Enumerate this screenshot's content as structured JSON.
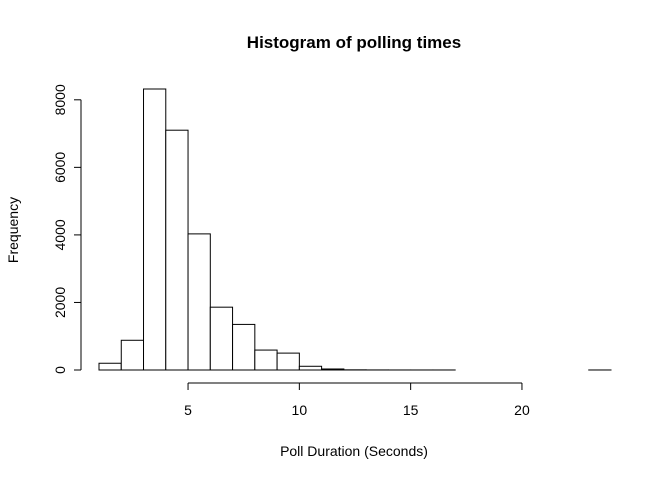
{
  "chart_data": {
    "type": "bar",
    "title": "Histogram of polling times",
    "xlabel": "Poll Duration (Seconds)",
    "ylabel": "Frequency",
    "bin_width": 1,
    "bins": [
      {
        "start": 1,
        "end": 2,
        "value": 200
      },
      {
        "start": 2,
        "end": 3,
        "value": 880
      },
      {
        "start": 3,
        "end": 4,
        "value": 8320
      },
      {
        "start": 4,
        "end": 5,
        "value": 7100
      },
      {
        "start": 5,
        "end": 6,
        "value": 4030
      },
      {
        "start": 6,
        "end": 7,
        "value": 1860
      },
      {
        "start": 7,
        "end": 8,
        "value": 1350
      },
      {
        "start": 8,
        "end": 9,
        "value": 590
      },
      {
        "start": 9,
        "end": 10,
        "value": 500
      },
      {
        "start": 10,
        "end": 11,
        "value": 110
      },
      {
        "start": 11,
        "end": 12,
        "value": 30
      },
      {
        "start": 12,
        "end": 13,
        "value": 5
      },
      {
        "start": 13,
        "end": 14,
        "value": 2
      },
      {
        "start": 14,
        "end": 15,
        "value": 1
      },
      {
        "start": 15,
        "end": 16,
        "value": 1
      },
      {
        "start": 16,
        "end": 17,
        "value": 1
      },
      {
        "start": 17,
        "end": 18,
        "value": 0
      },
      {
        "start": 18,
        "end": 19,
        "value": 0
      },
      {
        "start": 19,
        "end": 20,
        "value": 0
      },
      {
        "start": 20,
        "end": 21,
        "value": 0
      },
      {
        "start": 21,
        "end": 22,
        "value": 0
      },
      {
        "start": 22,
        "end": 23,
        "value": 0
      },
      {
        "start": 23,
        "end": 24,
        "value": 1
      }
    ],
    "xticks": [
      5,
      10,
      15,
      20
    ],
    "xtick_labels": [
      "5",
      "10",
      "15",
      "20"
    ],
    "yticks": [
      0,
      2000,
      4000,
      6000,
      8000
    ],
    "ytick_labels": [
      "0",
      "2000",
      "4000",
      "6000",
      "8000"
    ],
    "xlim": [
      1,
      24
    ],
    "ylim": [
      0,
      8320
    ],
    "grid": false,
    "bar_fill": "#ffffff",
    "bar_stroke": "#000000"
  }
}
